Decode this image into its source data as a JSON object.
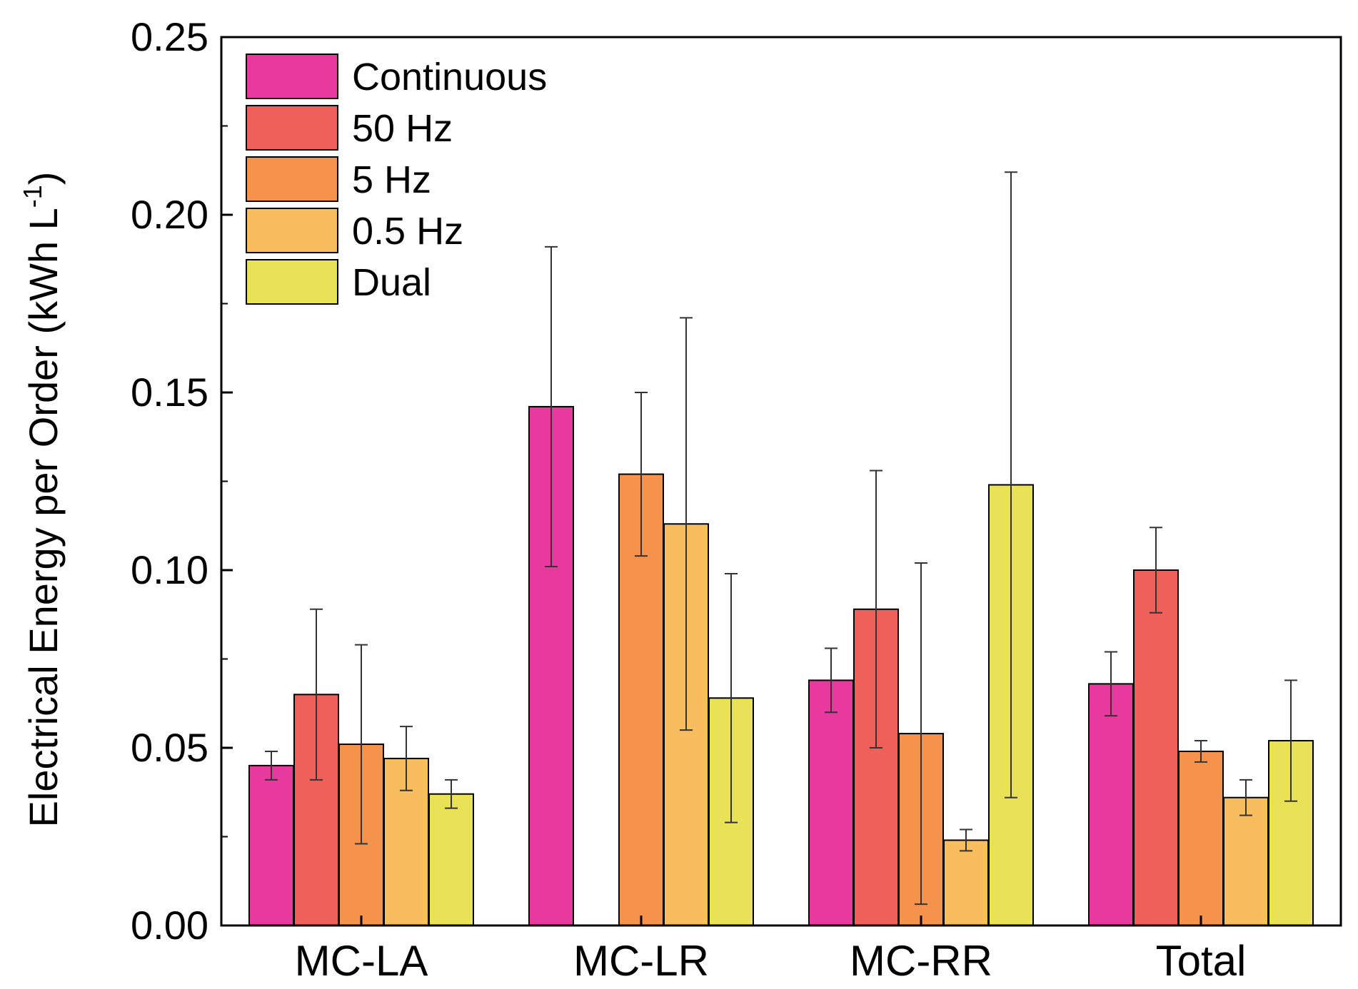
{
  "chart_data": {
    "type": "bar",
    "title": "",
    "xlabel": "",
    "ylabel": "Electrical Energy per Order (kWh L",
    "ylabel_superscript": "-1",
    "ylabel_suffix": ")",
    "ylim": [
      0,
      0.25
    ],
    "yticks": [
      "0.00",
      "0.05",
      "0.10",
      "0.15",
      "0.20",
      "0.25"
    ],
    "ytick_values": [
      0,
      0.05,
      0.1,
      0.15,
      0.2,
      0.25
    ],
    "categories": [
      "MC-LA",
      "MC-LR",
      "MC-RR",
      "Total"
    ],
    "legend_position": "top-left",
    "grid": false,
    "series": [
      {
        "name": "Continuous",
        "color": "#e8399e",
        "values": [
          0.045,
          0.146,
          0.069,
          0.068
        ],
        "errors": [
          0.004,
          0.045,
          0.009,
          0.009
        ]
      },
      {
        "name": "50 Hz",
        "color": "#f0605a",
        "values": [
          0.065,
          null,
          0.089,
          0.1
        ],
        "errors": [
          0.024,
          null,
          0.039,
          0.012
        ]
      },
      {
        "name": "5 Hz",
        "color": "#f5924c",
        "values": [
          0.051,
          0.127,
          0.054,
          0.049
        ],
        "errors": [
          0.028,
          0.023,
          0.048,
          0.003
        ]
      },
      {
        "name": "0.5 Hz",
        "color": "#f7bd5e",
        "values": [
          0.047,
          0.113,
          0.024,
          0.036
        ],
        "errors": [
          0.009,
          0.058,
          0.003,
          0.005
        ]
      },
      {
        "name": "Dual",
        "color": "#e9e256",
        "values": [
          0.037,
          0.064,
          0.124,
          0.052
        ],
        "errors": [
          0.004,
          0.035,
          0.088,
          0.017
        ]
      }
    ]
  }
}
